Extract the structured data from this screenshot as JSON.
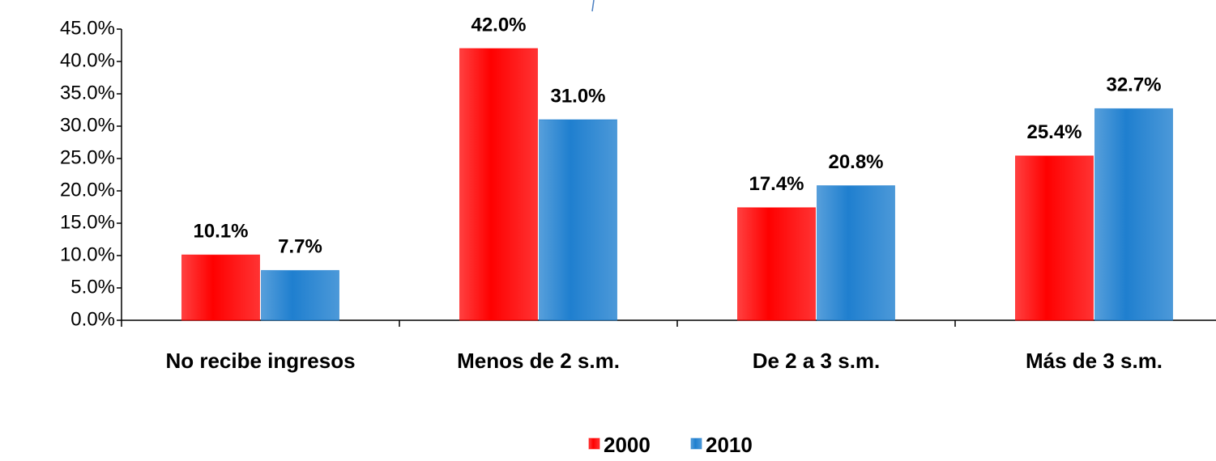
{
  "chart_data": {
    "type": "bar",
    "categories": [
      "No recibe ingresos",
      "Menos de 2 s.m.",
      "De 2 a 3 s.m.",
      "Más de 3 s.m."
    ],
    "series": [
      {
        "name": "2000",
        "color": "#ff0000",
        "values": [
          10.1,
          42.0,
          17.4,
          25.4
        ],
        "value_labels": [
          "10.1%",
          "42.0%",
          "17.4%",
          "25.4%"
        ]
      },
      {
        "name": "2010",
        "color": "#1f7fcf",
        "values": [
          7.7,
          31.0,
          20.8,
          32.7
        ],
        "value_labels": [
          "7.7%",
          "31.0%",
          "20.8%",
          "32.7%"
        ]
      }
    ],
    "ylim": [
      0,
      45
    ],
    "yticks": [
      {
        "value": 0,
        "label": "0.0%"
      },
      {
        "value": 5,
        "label": "5.0%"
      },
      {
        "value": 10,
        "label": "10.0%"
      },
      {
        "value": 15,
        "label": "15.0%"
      },
      {
        "value": 20,
        "label": "20.0%"
      },
      {
        "value": 25,
        "label": "25.0%"
      },
      {
        "value": 30,
        "label": "30.0%"
      },
      {
        "value": 35,
        "label": "35.0%"
      },
      {
        "value": 40,
        "label": "40.0%"
      },
      {
        "value": 45,
        "label": "45.0%"
      }
    ],
    "grid": false,
    "legend": "bottom"
  }
}
